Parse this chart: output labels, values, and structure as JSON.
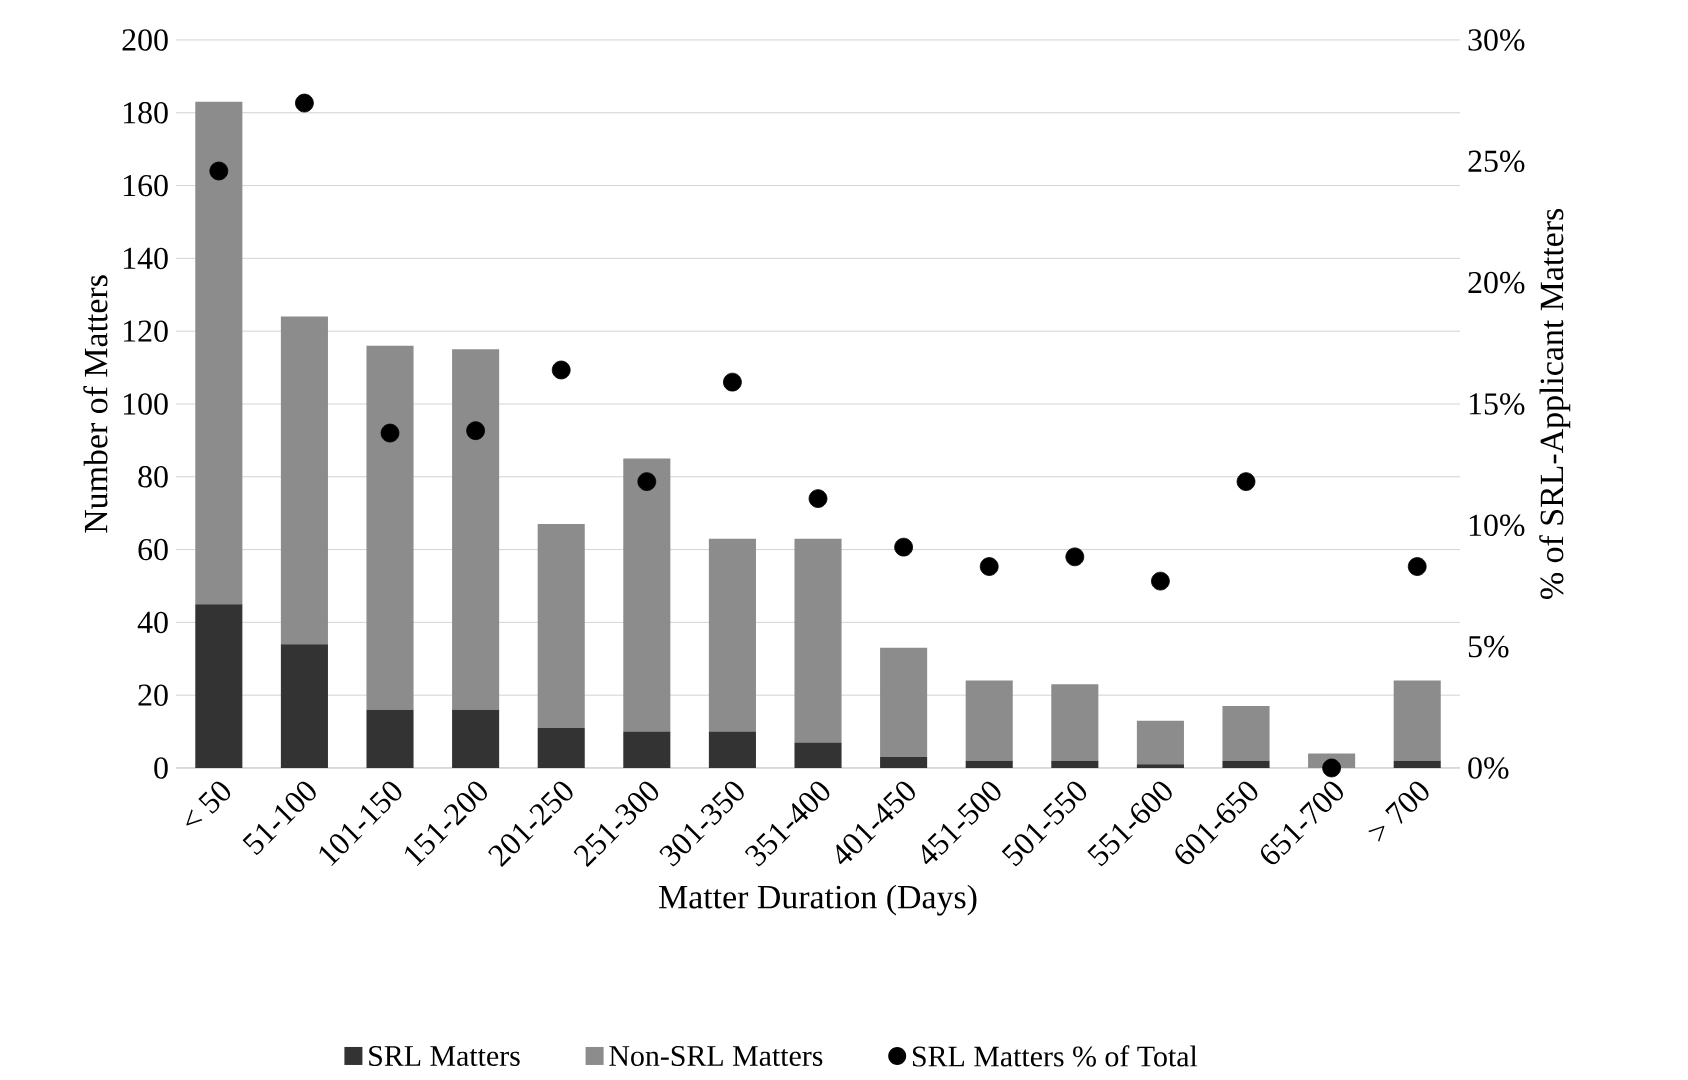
{
  "chart_data": {
    "type": "bar",
    "stacked": true,
    "xlabel": "Matter Duration (Days)",
    "ylabel": "Number of Matters",
    "y2label": "% of SRL-Applicant Matters",
    "categories": [
      "< 50",
      "51-100",
      "101-150",
      "151-200",
      "201-250",
      "251-300",
      "301-350",
      "351-400",
      "401-450",
      "451-500",
      "501-550",
      "551-600",
      "601-650",
      "651-700",
      "> 700"
    ],
    "series": [
      {
        "name": "SRL Matters",
        "color": "#333333",
        "values": [
          45,
          34,
          16,
          16,
          11,
          10,
          10,
          7,
          3,
          2,
          2,
          1,
          2,
          0,
          2
        ]
      },
      {
        "name": "Non-SRL Matters",
        "color": "#8c8c8c",
        "values": [
          138,
          90,
          100,
          99,
          56,
          75,
          53,
          56,
          30,
          22,
          21,
          12,
          15,
          4,
          22
        ]
      },
      {
        "name": "SRL Matters % of Total",
        "type": "scatter",
        "axis": "y2",
        "marker": "circle",
        "color": "#000000",
        "values": [
          24.6,
          27.4,
          13.8,
          13.9,
          16.4,
          11.8,
          15.9,
          11.1,
          9.1,
          8.3,
          8.7,
          7.7,
          11.8,
          0,
          8.3
        ]
      }
    ],
    "ylim": [
      0,
      200
    ],
    "yticks": [
      0,
      20,
      40,
      60,
      80,
      100,
      120,
      140,
      160,
      180,
      200
    ],
    "y2lim": [
      0,
      30
    ],
    "y2ticks": [
      {
        "value": 0,
        "label": "0%"
      },
      {
        "value": 5,
        "label": "5%"
      },
      {
        "value": 10,
        "label": "10%"
      },
      {
        "value": 15,
        "label": "15%"
      },
      {
        "value": 20,
        "label": "20%"
      },
      {
        "value": 25,
        "label": "25%"
      },
      {
        "value": 30,
        "label": "30%"
      }
    ],
    "grid": "y",
    "legend": "bottom"
  }
}
